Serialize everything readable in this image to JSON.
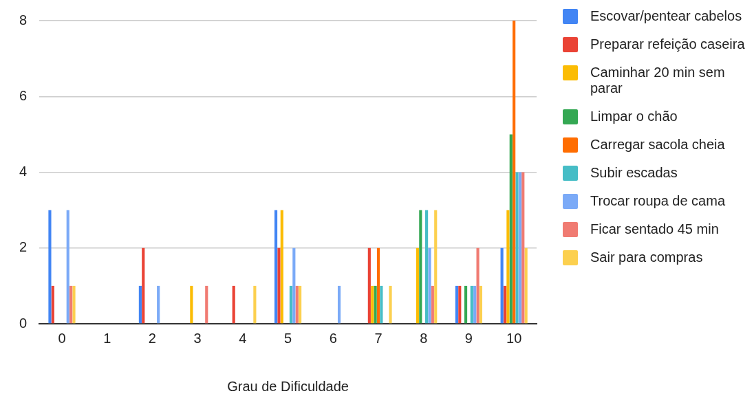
{
  "chart_data": {
    "type": "bar",
    "xlabel": "Grau de Dificuldade",
    "categories": [
      "0",
      "1",
      "2",
      "3",
      "4",
      "5",
      "6",
      "7",
      "8",
      "9",
      "10"
    ],
    "series": [
      {
        "name": "Escovar/pentear cabelos",
        "color": "#4285f4",
        "values": [
          3,
          null,
          1,
          null,
          null,
          3,
          null,
          null,
          null,
          1,
          2
        ]
      },
      {
        "name": "Preparar refeição caseira",
        "color": "#ea4335",
        "values": [
          1,
          null,
          2,
          null,
          1,
          2,
          null,
          2,
          null,
          1,
          1
        ]
      },
      {
        "name": "Caminhar 20 min sem parar",
        "color": "#fbbc04",
        "values": [
          null,
          null,
          null,
          1,
          null,
          3,
          null,
          1,
          2,
          null,
          3
        ]
      },
      {
        "name": "Limpar o chão",
        "color": "#34a853",
        "values": [
          null,
          null,
          null,
          null,
          null,
          null,
          null,
          1,
          3,
          1,
          5
        ]
      },
      {
        "name": "Carregar sacola cheia",
        "color": "#ff6d01",
        "values": [
          null,
          null,
          null,
          null,
          null,
          null,
          null,
          2,
          null,
          null,
          8
        ]
      },
      {
        "name": "Subir escadas",
        "color": "#46bdc6",
        "values": [
          null,
          null,
          null,
          null,
          null,
          1,
          null,
          1,
          3,
          1,
          4
        ]
      },
      {
        "name": "Trocar roupa de cama",
        "color": "#7baaf7",
        "values": [
          3,
          null,
          1,
          null,
          null,
          2,
          1,
          null,
          2,
          1,
          4
        ]
      },
      {
        "name": "Ficar sentado 45 min",
        "color": "#f07b72",
        "values": [
          1,
          null,
          null,
          1,
          null,
          1,
          null,
          null,
          1,
          2,
          4
        ]
      },
      {
        "name": "Sair para compras",
        "color": "#fcd04f",
        "values": [
          1,
          null,
          null,
          null,
          1,
          1,
          null,
          1,
          3,
          1,
          2
        ]
      }
    ],
    "ylim": [
      0,
      8
    ],
    "yticks": [
      0,
      2,
      4,
      6,
      8
    ],
    "grid": "y",
    "legend": "right"
  }
}
